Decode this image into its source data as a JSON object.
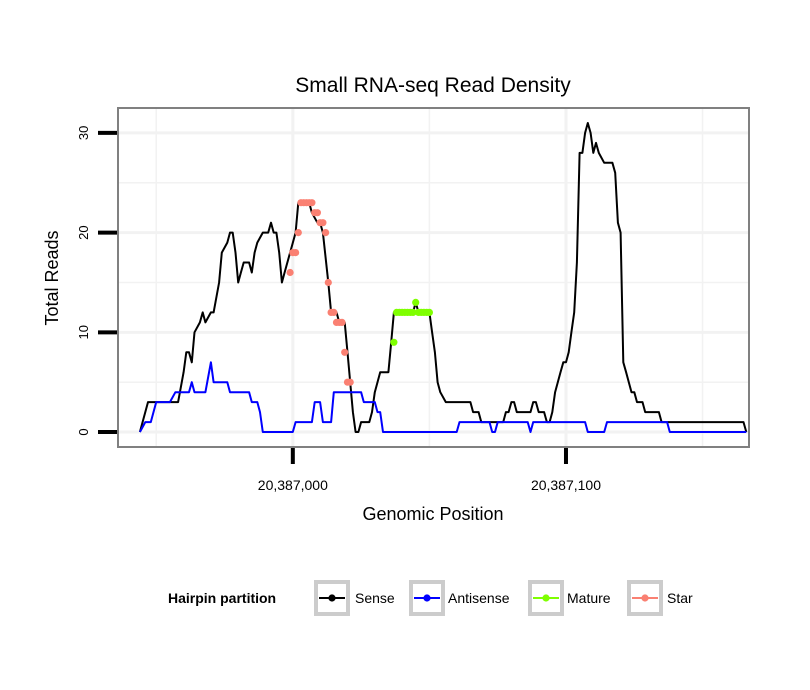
{
  "chart_data": {
    "type": "line",
    "title": "Small RNA-seq Read Density",
    "xlabel": "Genomic Position",
    "ylabel": "Total Reads",
    "xlim": [
      20386936,
      20387167
    ],
    "ylim": [
      -1.5,
      32.5
    ],
    "x_ticks": [
      20387000,
      20387100
    ],
    "x_tick_labels": [
      "20,387,000",
      "20,387,100"
    ],
    "y_ticks": [
      0,
      10,
      20,
      30
    ],
    "y_tick_labels": [
      "0",
      "10",
      "20",
      "30"
    ],
    "grid": true,
    "legend": {
      "title": "Hairpin partition",
      "position": "bottom",
      "entries": [
        "Sense",
        "Antisense",
        "Mature",
        "Star"
      ]
    },
    "series": [
      {
        "name": "Sense",
        "color": "#000000",
        "style": "line",
        "points": [
          [
            20386944,
            0
          ],
          [
            20386947,
            3
          ],
          [
            20386951,
            3
          ],
          [
            20386953,
            3
          ],
          [
            20386955,
            3
          ],
          [
            20386958,
            3
          ],
          [
            20386960,
            6
          ],
          [
            20386961,
            8
          ],
          [
            20386962,
            8
          ],
          [
            20386963,
            7
          ],
          [
            20386964,
            10
          ],
          [
            20386966,
            11
          ],
          [
            20386967,
            12
          ],
          [
            20386968,
            11
          ],
          [
            20386970,
            12
          ],
          [
            20386971,
            12
          ],
          [
            20386973,
            15
          ],
          [
            20386974,
            18
          ],
          [
            20386976,
            19
          ],
          [
            20386977,
            20
          ],
          [
            20386978,
            20
          ],
          [
            20386979,
            18
          ],
          [
            20386980,
            15
          ],
          [
            20386981,
            16
          ],
          [
            20386982,
            17
          ],
          [
            20386984,
            17
          ],
          [
            20386985,
            16
          ],
          [
            20386986,
            18
          ],
          [
            20386987,
            19
          ],
          [
            20386989,
            20
          ],
          [
            20386991,
            20
          ],
          [
            20386992,
            21
          ],
          [
            20386993,
            20
          ],
          [
            20386994,
            20
          ],
          [
            20386995,
            18
          ],
          [
            20386996,
            15
          ],
          [
            20386997,
            16
          ],
          [
            20386999,
            18
          ],
          [
            20387001,
            20
          ],
          [
            20387002,
            23
          ],
          [
            20387006,
            23
          ],
          [
            20387007,
            22
          ],
          [
            20387009,
            21
          ],
          [
            20387010,
            21
          ],
          [
            20387011,
            20
          ],
          [
            20387013,
            15
          ],
          [
            20387014,
            12
          ],
          [
            20387016,
            12
          ],
          [
            20387017,
            11
          ],
          [
            20387019,
            11
          ],
          [
            20387020,
            8
          ],
          [
            20387021,
            5
          ],
          [
            20387022,
            2
          ],
          [
            20387023,
            0
          ],
          [
            20387024,
            0
          ],
          [
            20387025,
            1
          ],
          [
            20387028,
            1
          ],
          [
            20387029,
            2
          ],
          [
            20387030,
            4
          ],
          [
            20387031,
            5
          ],
          [
            20387032,
            6
          ],
          [
            20387035,
            6
          ],
          [
            20387036,
            9
          ],
          [
            20387037,
            12
          ],
          [
            20387040,
            12
          ],
          [
            20387044,
            12
          ],
          [
            20387045,
            13
          ],
          [
            20387046,
            12
          ],
          [
            20387050,
            12
          ],
          [
            20387051,
            10
          ],
          [
            20387052,
            8
          ],
          [
            20387053,
            5
          ],
          [
            20387054,
            4
          ],
          [
            20387056,
            3
          ],
          [
            20387060,
            3
          ],
          [
            20387065,
            3
          ],
          [
            20387066,
            2
          ],
          [
            20387068,
            2
          ],
          [
            20387069,
            1
          ],
          [
            20387072,
            1
          ],
          [
            20387075,
            1
          ],
          [
            20387077,
            1
          ],
          [
            20387078,
            2
          ],
          [
            20387079,
            2
          ],
          [
            20387080,
            3
          ],
          [
            20387081,
            3
          ],
          [
            20387082,
            2
          ],
          [
            20387085,
            2
          ],
          [
            20387087,
            2
          ],
          [
            20387088,
            3
          ],
          [
            20387089,
            3
          ],
          [
            20387090,
            2
          ],
          [
            20387092,
            2
          ],
          [
            20387093,
            1
          ],
          [
            20387094,
            1
          ],
          [
            20387095,
            2
          ],
          [
            20387096,
            4
          ],
          [
            20387097,
            5
          ],
          [
            20387098,
            6
          ],
          [
            20387099,
            7
          ],
          [
            20387100,
            7
          ],
          [
            20387101,
            8
          ],
          [
            20387102,
            10
          ],
          [
            20387103,
            12
          ],
          [
            20387104,
            17
          ],
          [
            20387105,
            28
          ],
          [
            20387106,
            28
          ],
          [
            20387107,
            30
          ],
          [
            20387108,
            31
          ],
          [
            20387109,
            30
          ],
          [
            20387110,
            28
          ],
          [
            20387111,
            29
          ],
          [
            20387112,
            28
          ],
          [
            20387114,
            27
          ],
          [
            20387117,
            27
          ],
          [
            20387118,
            26
          ],
          [
            20387119,
            21
          ],
          [
            20387120,
            20
          ],
          [
            20387121,
            7
          ],
          [
            20387122,
            6
          ],
          [
            20387123,
            5
          ],
          [
            20387124,
            4
          ],
          [
            20387125,
            4
          ],
          [
            20387126,
            3
          ],
          [
            20387128,
            3
          ],
          [
            20387129,
            2
          ],
          [
            20387134,
            2
          ],
          [
            20387135,
            1
          ],
          [
            20387150,
            1
          ],
          [
            20387165,
            1
          ],
          [
            20387166,
            0
          ]
        ]
      },
      {
        "name": "Antisense",
        "color": "#0000ff",
        "style": "line",
        "points": [
          [
            20386944,
            0
          ],
          [
            20386946,
            1
          ],
          [
            20386948,
            1
          ],
          [
            20386950,
            3
          ],
          [
            20386955,
            3
          ],
          [
            20386957,
            4
          ],
          [
            20386962,
            4
          ],
          [
            20386963,
            5
          ],
          [
            20386964,
            4
          ],
          [
            20386968,
            4
          ],
          [
            20386970,
            7
          ],
          [
            20386971,
            5
          ],
          [
            20386976,
            5
          ],
          [
            20386977,
            4
          ],
          [
            20386984,
            4
          ],
          [
            20386985,
            3
          ],
          [
            20386987,
            3
          ],
          [
            20386988,
            2
          ],
          [
            20386989,
            0
          ],
          [
            20387000,
            0
          ],
          [
            20387001,
            1
          ],
          [
            20387007,
            1
          ],
          [
            20387008,
            3
          ],
          [
            20387010,
            3
          ],
          [
            20387011,
            1
          ],
          [
            20387014,
            1
          ],
          [
            20387015,
            4
          ],
          [
            20387025,
            4
          ],
          [
            20387026,
            3
          ],
          [
            20387030,
            3
          ],
          [
            20387031,
            2
          ],
          [
            20387032,
            2
          ],
          [
            20387033,
            0
          ],
          [
            20387060,
            0
          ],
          [
            20387061,
            1
          ],
          [
            20387072,
            1
          ],
          [
            20387073,
            0
          ],
          [
            20387074,
            0
          ],
          [
            20387075,
            1
          ],
          [
            20387086,
            1
          ],
          [
            20387087,
            0
          ],
          [
            20387088,
            1
          ],
          [
            20387107,
            1
          ],
          [
            20387108,
            0
          ],
          [
            20387114,
            0
          ],
          [
            20387115,
            1
          ],
          [
            20387137,
            1
          ],
          [
            20387138,
            0
          ],
          [
            20387166,
            0
          ]
        ]
      },
      {
        "name": "Mature",
        "color": "#7fff00",
        "style": "markers",
        "points": [
          [
            20387037,
            9
          ],
          [
            20387038,
            12
          ],
          [
            20387039,
            12
          ],
          [
            20387040,
            12
          ],
          [
            20387041,
            12
          ],
          [
            20387042,
            12
          ],
          [
            20387043,
            12
          ],
          [
            20387044,
            12
          ],
          [
            20387045,
            13
          ],
          [
            20387046,
            12
          ],
          [
            20387047,
            12
          ],
          [
            20387048,
            12
          ],
          [
            20387049,
            12
          ],
          [
            20387050,
            12
          ]
        ]
      },
      {
        "name": "Star",
        "color": "#fa8072",
        "style": "markers",
        "points": [
          [
            20386999,
            16
          ],
          [
            20387000,
            18
          ],
          [
            20387001,
            18
          ],
          [
            20387002,
            20
          ],
          [
            20387003,
            23
          ],
          [
            20387004,
            23
          ],
          [
            20387005,
            23
          ],
          [
            20387006,
            23
          ],
          [
            20387007,
            23
          ],
          [
            20387008,
            22
          ],
          [
            20387009,
            22
          ],
          [
            20387010,
            21
          ],
          [
            20387011,
            21
          ],
          [
            20387012,
            20
          ],
          [
            20387013,
            15
          ],
          [
            20387014,
            12
          ],
          [
            20387015,
            12
          ],
          [
            20387016,
            11
          ],
          [
            20387017,
            11
          ],
          [
            20387018,
            11
          ],
          [
            20387019,
            8
          ],
          [
            20387020,
            5
          ],
          [
            20387021,
            5
          ]
        ]
      }
    ]
  }
}
